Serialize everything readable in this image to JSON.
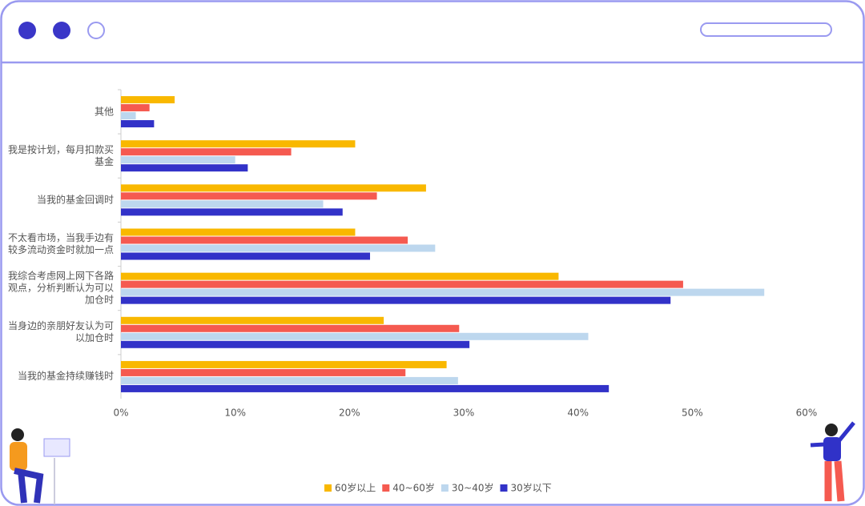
{
  "chart_data": {
    "type": "hbar",
    "categories": [
      "其他",
      "我是按计划，每月扣款买基金",
      "当我的基金回调时",
      "不太看市场，当我手边有较多流动资金时就加一点",
      "我综合考虑网上网下各路观点，分析判断认为可以加仓时",
      "当身边的亲朋好友认为可以加仓时",
      "当我的基金持续赚钱时"
    ],
    "series": [
      {
        "name": "60岁以上",
        "color": "#f9b800",
        "values": [
          4.7,
          20.5,
          26.7,
          20.5,
          38.3,
          23.0,
          28.5
        ]
      },
      {
        "name": "40~60岁",
        "color": "#f55a50",
        "values": [
          2.5,
          14.9,
          22.4,
          25.1,
          49.2,
          29.6,
          24.9
        ]
      },
      {
        "name": "30~40岁",
        "color": "#bdd7ee",
        "values": [
          1.3,
          10.0,
          17.7,
          27.5,
          56.3,
          40.9,
          29.5
        ]
      },
      {
        "name": "30岁以下",
        "color": "#3232c8",
        "values": [
          2.9,
          11.1,
          19.4,
          21.8,
          48.1,
          30.5,
          42.7
        ]
      }
    ],
    "xlim": [
      0,
      60
    ],
    "xticks": [
      {
        "value": 0,
        "label": "0%"
      },
      {
        "value": 10,
        "label": "10%"
      },
      {
        "value": 20,
        "label": "20%"
      },
      {
        "value": 30,
        "label": "30%"
      },
      {
        "value": 40,
        "label": "40%"
      },
      {
        "value": 50,
        "label": "50%"
      },
      {
        "value": 60,
        "label": "60%"
      }
    ],
    "legend": "bottom"
  }
}
